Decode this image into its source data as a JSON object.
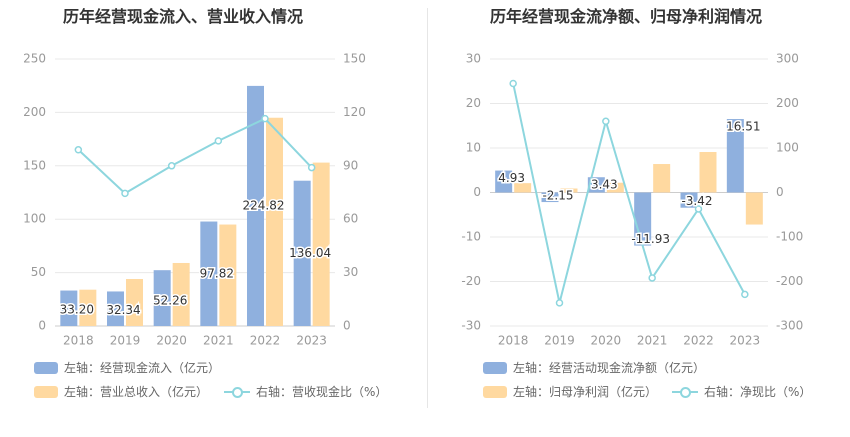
{
  "colors": {
    "bar_a": "#8fb0de",
    "bar_b": "#ffd9a0",
    "line": "#8dd6de",
    "axis_text": "#999999",
    "grid": "#e8e8e8",
    "label": "#333333"
  },
  "chart_data": [
    {
      "type": "bar",
      "title": "历年经营现金流入、营业收入情况",
      "categories": [
        "2018",
        "2019",
        "2020",
        "2021",
        "2022",
        "2023"
      ],
      "y_left": {
        "min": 0,
        "max": 250,
        "ticks": [
          0,
          50,
          100,
          150,
          200,
          250
        ]
      },
      "y_right": {
        "min": 0,
        "max": 150,
        "ticks": [
          0,
          30,
          60,
          90,
          120,
          150
        ]
      },
      "series": [
        {
          "name": "左轴：经营现金流入（亿元）",
          "type": "bar",
          "axis": "left",
          "values": [
            33.2,
            32.34,
            52.26,
            97.82,
            224.82,
            136.04
          ],
          "labels": [
            "33.20",
            "32.34",
            "52.26",
            "97.82",
            "224.82",
            "136.04"
          ]
        },
        {
          "name": "左轴：营业总收入（亿元）",
          "type": "bar",
          "axis": "left",
          "values": [
            34,
            44,
            59,
            95,
            195,
            153
          ]
        },
        {
          "name": "右轴：营收现金比（%）",
          "type": "line",
          "axis": "right",
          "values": [
            99,
            74.5,
            90,
            104,
            116.5,
            89
          ]
        }
      ],
      "grid": true
    },
    {
      "type": "bar",
      "title": "历年经营现金流净额、归母净利润情况",
      "categories": [
        "2018",
        "2019",
        "2020",
        "2021",
        "2022",
        "2023"
      ],
      "y_left": {
        "min": -30,
        "max": 30,
        "ticks": [
          -30,
          -20,
          -10,
          0,
          10,
          20,
          30
        ]
      },
      "y_right": {
        "min": -300,
        "max": 300,
        "ticks": [
          -300,
          -200,
          -100,
          0,
          100,
          200,
          300
        ]
      },
      "series": [
        {
          "name": "左轴：经营活动现金流净额（亿元）",
          "type": "bar",
          "axis": "left",
          "values": [
            4.93,
            -2.15,
            3.43,
            -11.93,
            -3.42,
            16.51
          ],
          "labels": [
            "4.93",
            "-2.15",
            "3.43",
            "-11.93",
            "-3.42",
            "16.51"
          ]
        },
        {
          "name": "左轴：归母净利润（亿元）",
          "type": "bar",
          "axis": "left",
          "values": [
            2.1,
            0.9,
            2.2,
            6.4,
            9.1,
            -7.2
          ]
        },
        {
          "name": "右轴：净现比（%）",
          "type": "line",
          "axis": "right",
          "values": [
            245,
            -248,
            160,
            -192,
            -37,
            -229
          ]
        }
      ],
      "grid": true
    }
  ]
}
